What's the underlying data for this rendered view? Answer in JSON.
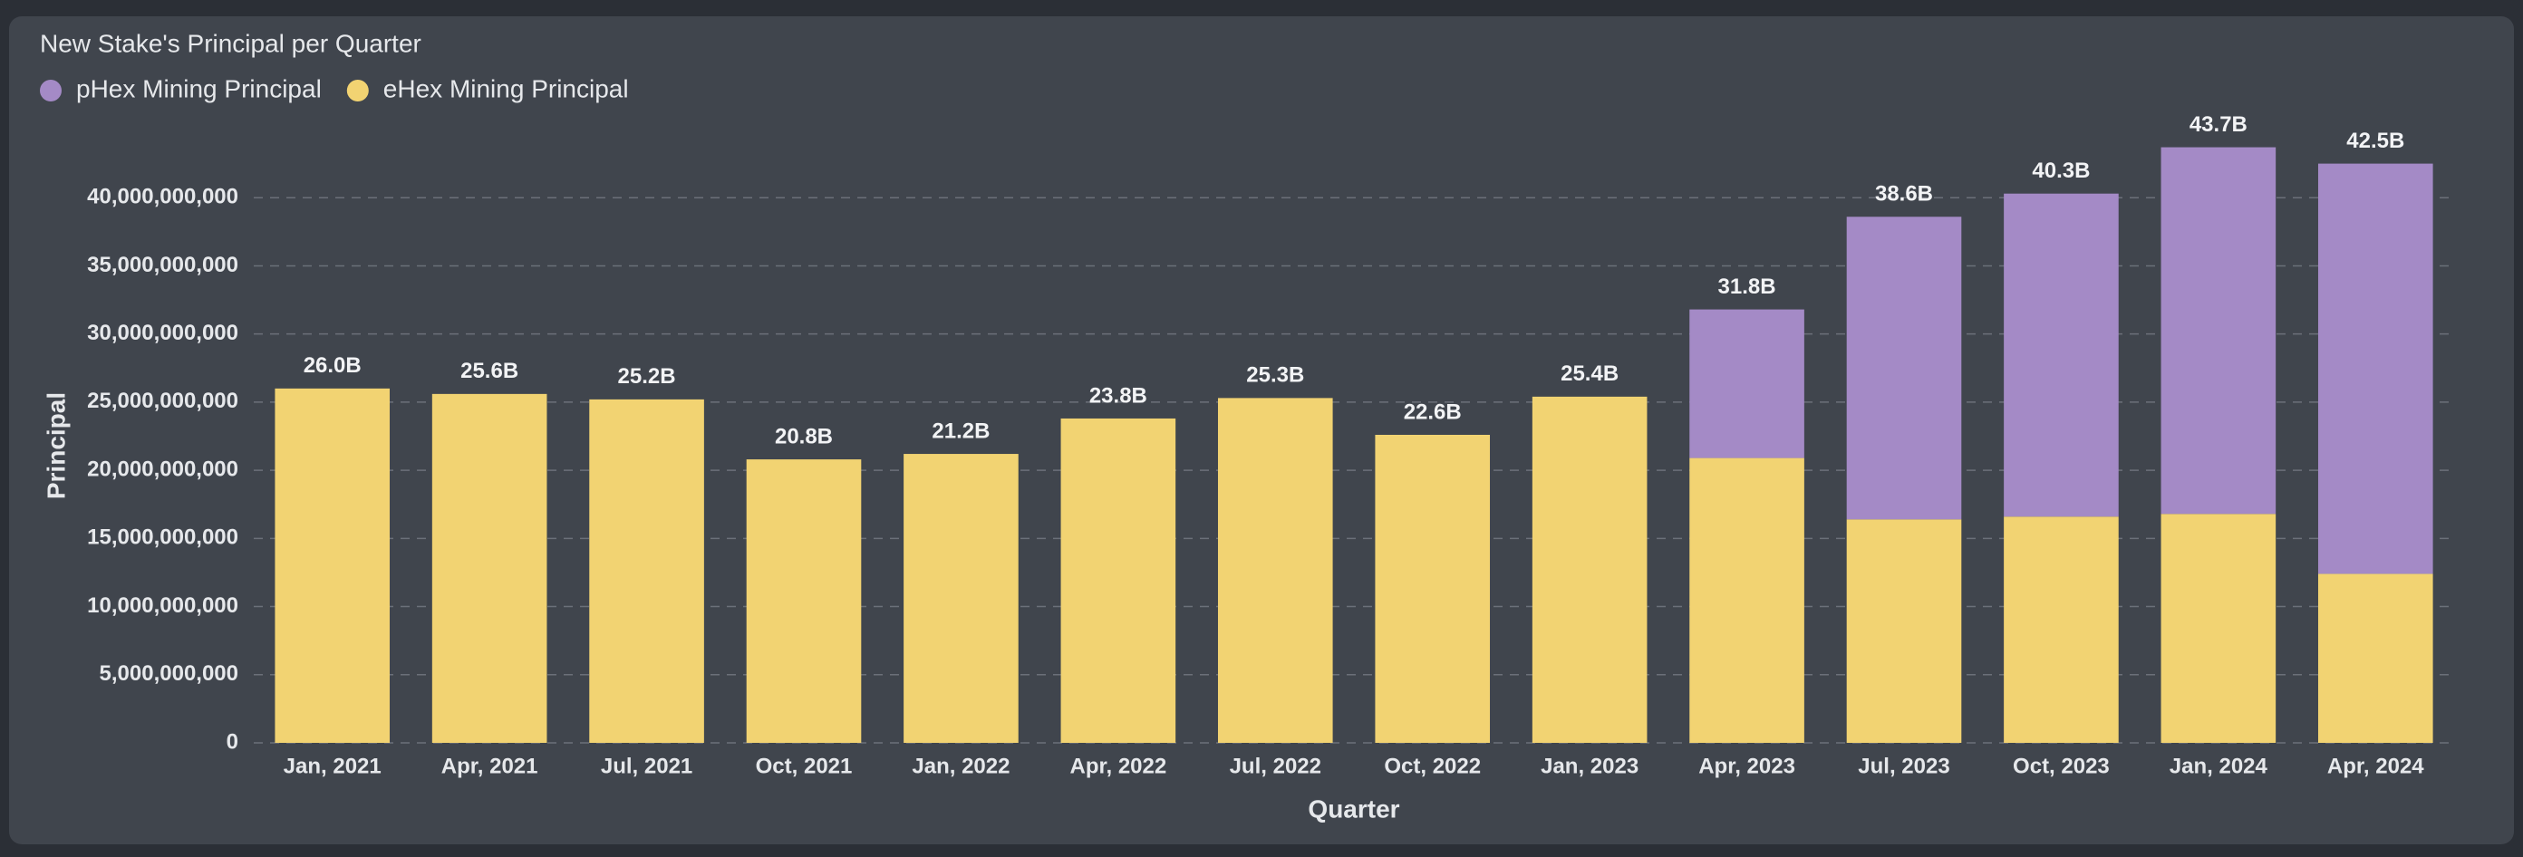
{
  "chart_data": {
    "type": "stacked_bar",
    "title": "New Stake's Principal per Quarter",
    "x_label": "Quarter",
    "y_label": "Principal",
    "categories": [
      "Jan, 2021",
      "Apr, 2021",
      "Jul, 2021",
      "Oct, 2021",
      "Jan, 2022",
      "Apr, 2022",
      "Jul, 2022",
      "Oct, 2022",
      "Jan, 2023",
      "Apr, 2023",
      "Jul, 2023",
      "Oct, 2023",
      "Jan, 2024",
      "Apr, 2024"
    ],
    "series": [
      {
        "name": "pHex Mining Principal",
        "color": "#a48ac6",
        "values": [
          null,
          null,
          null,
          null,
          null,
          null,
          null,
          null,
          null,
          10900000000,
          22200000000,
          23700000000,
          26900000000,
          30100000000
        ]
      },
      {
        "name": "eHex Mining Principal",
        "color": "#f2d372",
        "values": [
          26000000000,
          25600000000,
          25200000000,
          20800000000,
          21200000000,
          23800000000,
          25300000000,
          22600000000,
          25400000000,
          20900000000,
          16400000000,
          16600000000,
          16800000000,
          12400000000
        ]
      }
    ],
    "total_labels": [
      "26.0B",
      "25.6B",
      "25.2B",
      "20.8B",
      "21.2B",
      "23.8B",
      "25.3B",
      "22.6B",
      "25.4B",
      "31.8B",
      "38.6B",
      "40.3B",
      "43.7B",
      "42.5B"
    ],
    "ylim": [
      0,
      45000000000
    ],
    "yticks": [
      0,
      {
        "value": 5000000000,
        "label": "5,000,000,000"
      },
      {
        "value": 10000000000,
        "label": "10,000,000,000"
      },
      {
        "value": 15000000000,
        "label": "15,000,000,000"
      },
      {
        "value": 20000000000,
        "label": "20,000,000,000"
      },
      {
        "value": 25000000000,
        "label": "25,000,000,000"
      },
      {
        "value": 30000000000,
        "label": "30,000,000,000"
      },
      {
        "value": 35000000000,
        "label": "35,000,000,000"
      },
      {
        "value": 40000000000,
        "label": "40,000,000,000"
      }
    ],
    "grid": true,
    "legend": "top-left"
  }
}
